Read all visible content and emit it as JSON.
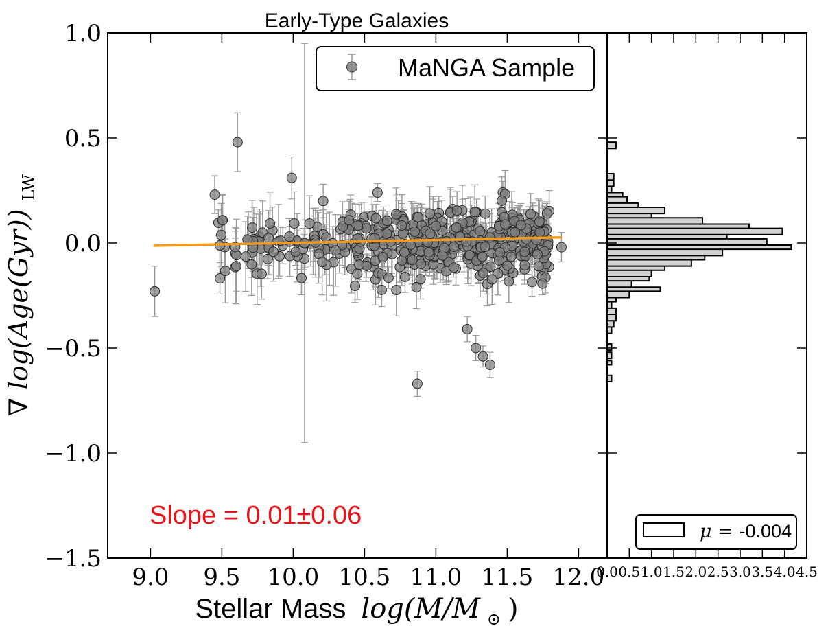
{
  "chart_data": [
    {
      "type": "scatter",
      "title": "Early-Type Galaxies",
      "xlabel_text": "Stellar Mass",
      "xlabel_math": "log(M/M",
      "xlabel_sub": "⊙",
      "xlabel_close": ")",
      "ylabel_math": "∇ log(Age(Gyr))",
      "ylabel_sub": "LW",
      "xlim": [
        8.7,
        12.2
      ],
      "ylim": [
        -1.5,
        1.0
      ],
      "xticks": [
        9.0,
        9.5,
        10.0,
        10.5,
        11.0,
        11.5,
        12.0
      ],
      "xtick_labels": [
        "9.0",
        "9.5",
        "10.0",
        "10.5",
        "11.0",
        "11.5",
        "12.0"
      ],
      "yticks": [
        1.0,
        0.5,
        0.0,
        -0.5,
        -1.0,
        -1.5
      ],
      "ytick_labels": [
        "1.0",
        "0.5",
        "0.0",
        "−0.5",
        "−1.0",
        "−1.5"
      ],
      "legend": {
        "label": "MaNGA Sample",
        "placement": "top-right"
      },
      "fit_line": {
        "x": [
          9.02,
          11.88
        ],
        "y": [
          -0.013,
          0.027
        ],
        "color": "#f39a1e"
      },
      "annotation": "Slope = 0.01±0.06",
      "annotation_color": "#e8141a",
      "marker_color": "#808080",
      "highlight_points": [
        {
          "x": 9.03,
          "y": -0.23,
          "err": 0.12
        },
        {
          "x": 9.61,
          "y": 0.48,
          "err": 0.14
        },
        {
          "x": 10.08,
          "y": 0.0,
          "err": 0.95
        },
        {
          "x": 9.99,
          "y": 0.31,
          "err": 0.1
        },
        {
          "x": 10.87,
          "y": -0.67,
          "err": 0.06
        },
        {
          "x": 11.38,
          "y": -0.58,
          "err": 0.06
        },
        {
          "x": 11.33,
          "y": -0.54,
          "err": 0.05
        },
        {
          "x": 11.28,
          "y": -0.5,
          "err": 0.06
        },
        {
          "x": 11.22,
          "y": -0.41,
          "err": 0.06
        },
        {
          "x": 9.45,
          "y": 0.23,
          "err": 0.09
        },
        {
          "x": 10.21,
          "y": 0.2,
          "err": 0.08
        },
        {
          "x": 11.88,
          "y": -0.02,
          "err": 0.07
        }
      ]
    },
    {
      "type": "bar",
      "orientation": "horizontal-histogram",
      "xlim": [
        0.0,
        4.5
      ],
      "xtick_labels": [
        "0.0",
        "0.5",
        "1.0",
        "1.5",
        "2.0",
        "2.5",
        "3.0",
        "3.5",
        "4.0",
        "4.5"
      ],
      "legend": {
        "label_math": "μ =",
        "label_value": "-0.004",
        "placement": "bottom-right"
      },
      "fill_color": "#d3d3d3",
      "bins": [
        {
          "y0": 0.45,
          "y1": 0.48,
          "count": 0.2
        },
        {
          "y0": 0.27,
          "y1": 0.3,
          "count": 0.15
        },
        {
          "y0": 0.3,
          "y1": 0.33,
          "count": 0.15
        },
        {
          "y0": 0.24,
          "y1": 0.27,
          "count": 0.1
        },
        {
          "y0": 0.22,
          "y1": 0.24,
          "count": 0.35
        },
        {
          "y0": 0.19,
          "y1": 0.22,
          "count": 0.45
        },
        {
          "y0": 0.17,
          "y1": 0.19,
          "count": 0.7
        },
        {
          "y0": 0.14,
          "y1": 0.17,
          "count": 1.3
        },
        {
          "y0": 0.12,
          "y1": 0.14,
          "count": 1.0
        },
        {
          "y0": 0.09,
          "y1": 0.12,
          "count": 2.15
        },
        {
          "y0": 0.07,
          "y1": 0.09,
          "count": 3.2
        },
        {
          "y0": 0.04,
          "y1": 0.07,
          "count": 3.95
        },
        {
          "y0": 0.02,
          "y1": 0.04,
          "count": 2.7
        },
        {
          "y0": -0.01,
          "y1": 0.02,
          "count": 3.6
        },
        {
          "y0": -0.03,
          "y1": -0.01,
          "count": 4.15
        },
        {
          "y0": -0.06,
          "y1": -0.03,
          "count": 2.6
        },
        {
          "y0": -0.08,
          "y1": -0.06,
          "count": 2.2
        },
        {
          "y0": -0.11,
          "y1": -0.08,
          "count": 1.9
        },
        {
          "y0": -0.13,
          "y1": -0.11,
          "count": 1.3
        },
        {
          "y0": -0.16,
          "y1": -0.13,
          "count": 1.0
        },
        {
          "y0": -0.18,
          "y1": -0.16,
          "count": 0.95
        },
        {
          "y0": -0.21,
          "y1": -0.18,
          "count": 0.55
        },
        {
          "y0": -0.23,
          "y1": -0.21,
          "count": 1.2
        },
        {
          "y0": -0.26,
          "y1": -0.23,
          "count": 0.5
        },
        {
          "y0": -0.28,
          "y1": -0.26,
          "count": 0.2
        },
        {
          "y0": -0.31,
          "y1": -0.28,
          "count": 0.1
        },
        {
          "y0": -0.34,
          "y1": -0.31,
          "count": 0.2
        },
        {
          "y0": -0.37,
          "y1": -0.34,
          "count": 0.2
        },
        {
          "y0": -0.4,
          "y1": -0.37,
          "count": 0.15
        },
        {
          "y0": -0.43,
          "y1": -0.4,
          "count": 0.1
        },
        {
          "y0": -0.51,
          "y1": -0.48,
          "count": 0.1
        },
        {
          "y0": -0.55,
          "y1": -0.52,
          "count": 0.1
        },
        {
          "y0": -0.58,
          "y1": -0.56,
          "count": 0.1
        },
        {
          "y0": -0.66,
          "y1": -0.63,
          "count": 0.1
        }
      ]
    }
  ]
}
